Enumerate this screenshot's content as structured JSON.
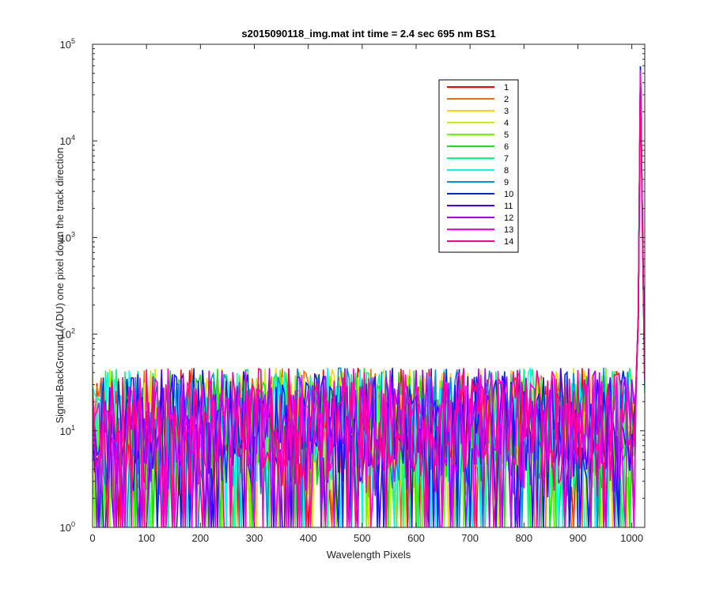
{
  "chart_data": {
    "type": "line",
    "title": "s2015090118_img.mat int time = 2.4 sec  695 nm BS1",
    "xlabel": "Wavelength Pixels",
    "ylabel": "Signal-BackGround (ADU) one pixel down the track direction",
    "xlim": [
      0,
      1024
    ],
    "ylim": [
      1,
      100000
    ],
    "yscale": "log",
    "grid": false,
    "legend_position": "top-right",
    "x_ticks": [
      "0",
      "100",
      "200",
      "300",
      "400",
      "500",
      "600",
      "700",
      "800",
      "900",
      "1000"
    ],
    "y_ticks": [
      {
        "base": "10",
        "exp": "0"
      },
      {
        "base": "10",
        "exp": "1"
      },
      {
        "base": "10",
        "exp": "2"
      },
      {
        "base": "10",
        "exp": "3"
      },
      {
        "base": "10",
        "exp": "4"
      },
      {
        "base": "10",
        "exp": "5"
      }
    ],
    "noise_floor": {
      "typical_min": 1,
      "typical_max": 45,
      "median": 10
    },
    "peak": {
      "x": [
        1008,
        1012,
        1015,
        1018,
        1020,
        1022,
        1024
      ],
      "y": [
        30,
        150,
        52000,
        50000,
        1000,
        200,
        30
      ]
    },
    "series": [
      {
        "name": "1",
        "color": "#ff0000",
        "seed": 11
      },
      {
        "name": "2",
        "color": "#ff6a00",
        "seed": 23
      },
      {
        "name": "3",
        "color": "#ffd400",
        "seed": 37
      },
      {
        "name": "4",
        "color": "#c8f000",
        "seed": 41
      },
      {
        "name": "5",
        "color": "#66ff00",
        "seed": 53
      },
      {
        "name": "6",
        "color": "#14e614",
        "seed": 67
      },
      {
        "name": "7",
        "color": "#00ff80",
        "seed": 71
      },
      {
        "name": "8",
        "color": "#00ffee",
        "seed": 83
      },
      {
        "name": "9",
        "color": "#0090e0",
        "seed": 97
      },
      {
        "name": "10",
        "color": "#0022ee",
        "seed": 101
      },
      {
        "name": "11",
        "color": "#4400ff",
        "seed": 113
      },
      {
        "name": "12",
        "color": "#aa00ff",
        "seed": 127
      },
      {
        "name": "13",
        "color": "#ff00dd",
        "seed": 131
      },
      {
        "name": "14",
        "color": "#ff0088",
        "seed": 149
      }
    ]
  }
}
